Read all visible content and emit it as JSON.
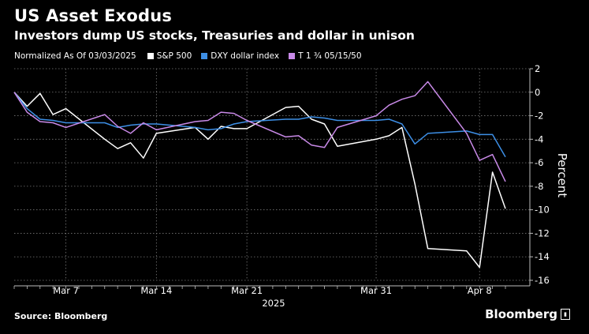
{
  "header": {
    "title": "US Asset Exodus",
    "subtitle": "Investors dump US stocks, Treasuries and dollar in unison"
  },
  "legend": {
    "normalized_label": "Normalized As Of 03/03/2025"
  },
  "footer": {
    "source": "Source: Bloomberg",
    "brand": "Bloomberg"
  },
  "chart_data": {
    "type": "line",
    "title": "US Asset Exodus",
    "subtitle": "Investors dump US stocks, Treasuries and dollar in unison",
    "ylabel": "Percent",
    "xlabel": "2025",
    "ylim": [
      -16,
      2
    ],
    "yticks": [
      2,
      0,
      -2,
      -4,
      -6,
      -8,
      -10,
      -12,
      -14,
      -16
    ],
    "grid": true,
    "legend_position": "top",
    "x_dates": [
      "2025-03-03",
      "2025-03-04",
      "2025-03-05",
      "2025-03-06",
      "2025-03-07",
      "2025-03-10",
      "2025-03-11",
      "2025-03-12",
      "2025-03-13",
      "2025-03-14",
      "2025-03-17",
      "2025-03-18",
      "2025-03-19",
      "2025-03-20",
      "2025-03-21",
      "2025-03-24",
      "2025-03-25",
      "2025-03-26",
      "2025-03-27",
      "2025-03-28",
      "2025-03-31",
      "2025-04-01",
      "2025-04-02",
      "2025-04-03",
      "2025-04-04",
      "2025-04-07",
      "2025-04-08",
      "2025-04-09",
      "2025-04-10"
    ],
    "x_ticks": [
      {
        "label": "Mar 7",
        "date": "2025-03-07"
      },
      {
        "label": "Mar 14",
        "date": "2025-03-14"
      },
      {
        "label": "Mar 21",
        "date": "2025-03-21"
      },
      {
        "label": "Mar 31",
        "date": "2025-03-31"
      },
      {
        "label": "Apr 8",
        "date": "2025-04-08"
      }
    ],
    "series": [
      {
        "name": "S&P 500",
        "color": "#ffffff",
        "values": [
          0,
          -1.2,
          -0.1,
          -1.9,
          -1.4,
          -4.0,
          -4.8,
          -4.3,
          -5.6,
          -3.5,
          -3.0,
          -4.0,
          -2.9,
          -3.1,
          -3.1,
          -1.3,
          -1.2,
          -2.3,
          -2.7,
          -4.6,
          -4.0,
          -3.7,
          -3.0,
          -7.8,
          -13.3,
          -13.5,
          -14.9,
          -6.8,
          -9.9
        ]
      },
      {
        "name": "DXY dollar index",
        "color": "#3d8fe6",
        "values": [
          0,
          -1.4,
          -2.3,
          -2.4,
          -2.6,
          -2.6,
          -3.0,
          -2.8,
          -2.7,
          -2.7,
          -3.0,
          -3.2,
          -3.1,
          -2.7,
          -2.5,
          -2.3,
          -2.3,
          -2.1,
          -2.2,
          -2.4,
          -2.4,
          -2.3,
          -2.7,
          -4.4,
          -3.5,
          -3.3,
          -3.6,
          -3.6,
          -5.5
        ]
      },
      {
        "name": "T 1 ¾ 05/15/50",
        "color": "#c98ae8",
        "values": [
          0,
          -1.7,
          -2.5,
          -2.6,
          -3.0,
          -1.9,
          -2.9,
          -3.5,
          -2.6,
          -3.2,
          -2.5,
          -2.4,
          -1.7,
          -1.8,
          -2.4,
          -3.8,
          -3.7,
          -4.5,
          -4.7,
          -3.0,
          -2.0,
          -1.1,
          -0.6,
          -0.3,
          0.9,
          -3.5,
          -5.8,
          -5.3,
          -7.6
        ]
      }
    ]
  }
}
